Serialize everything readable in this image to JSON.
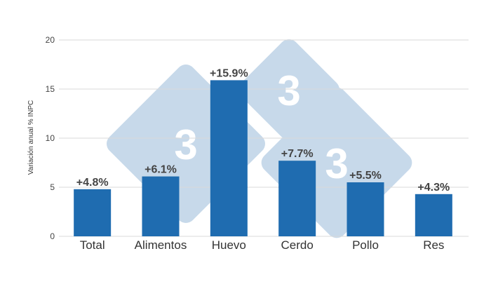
{
  "watermark": {
    "logo": "333",
    "color": "#c7d9ea"
  },
  "chart_data": {
    "type": "bar",
    "title": "",
    "xlabel": "",
    "ylabel": "Variación anual % INPC",
    "categories": [
      "Total",
      "Alimentos",
      "Huevo",
      "Cerdo",
      "Pollo",
      "Res"
    ],
    "values": [
      4.8,
      6.1,
      15.9,
      7.7,
      5.5,
      4.3
    ],
    "data_labels": [
      "+4.8%",
      "+6.1%",
      "+15.9%",
      "+7.7%",
      "+5.5%",
      "+4.3%"
    ],
    "ylim": [
      0,
      20
    ],
    "yticks": [
      "0",
      "5",
      "10",
      "15",
      "20"
    ],
    "grid": true,
    "legend": "none",
    "bar_color": "#1f6cb0",
    "grid_color": "#d9d9d9"
  }
}
